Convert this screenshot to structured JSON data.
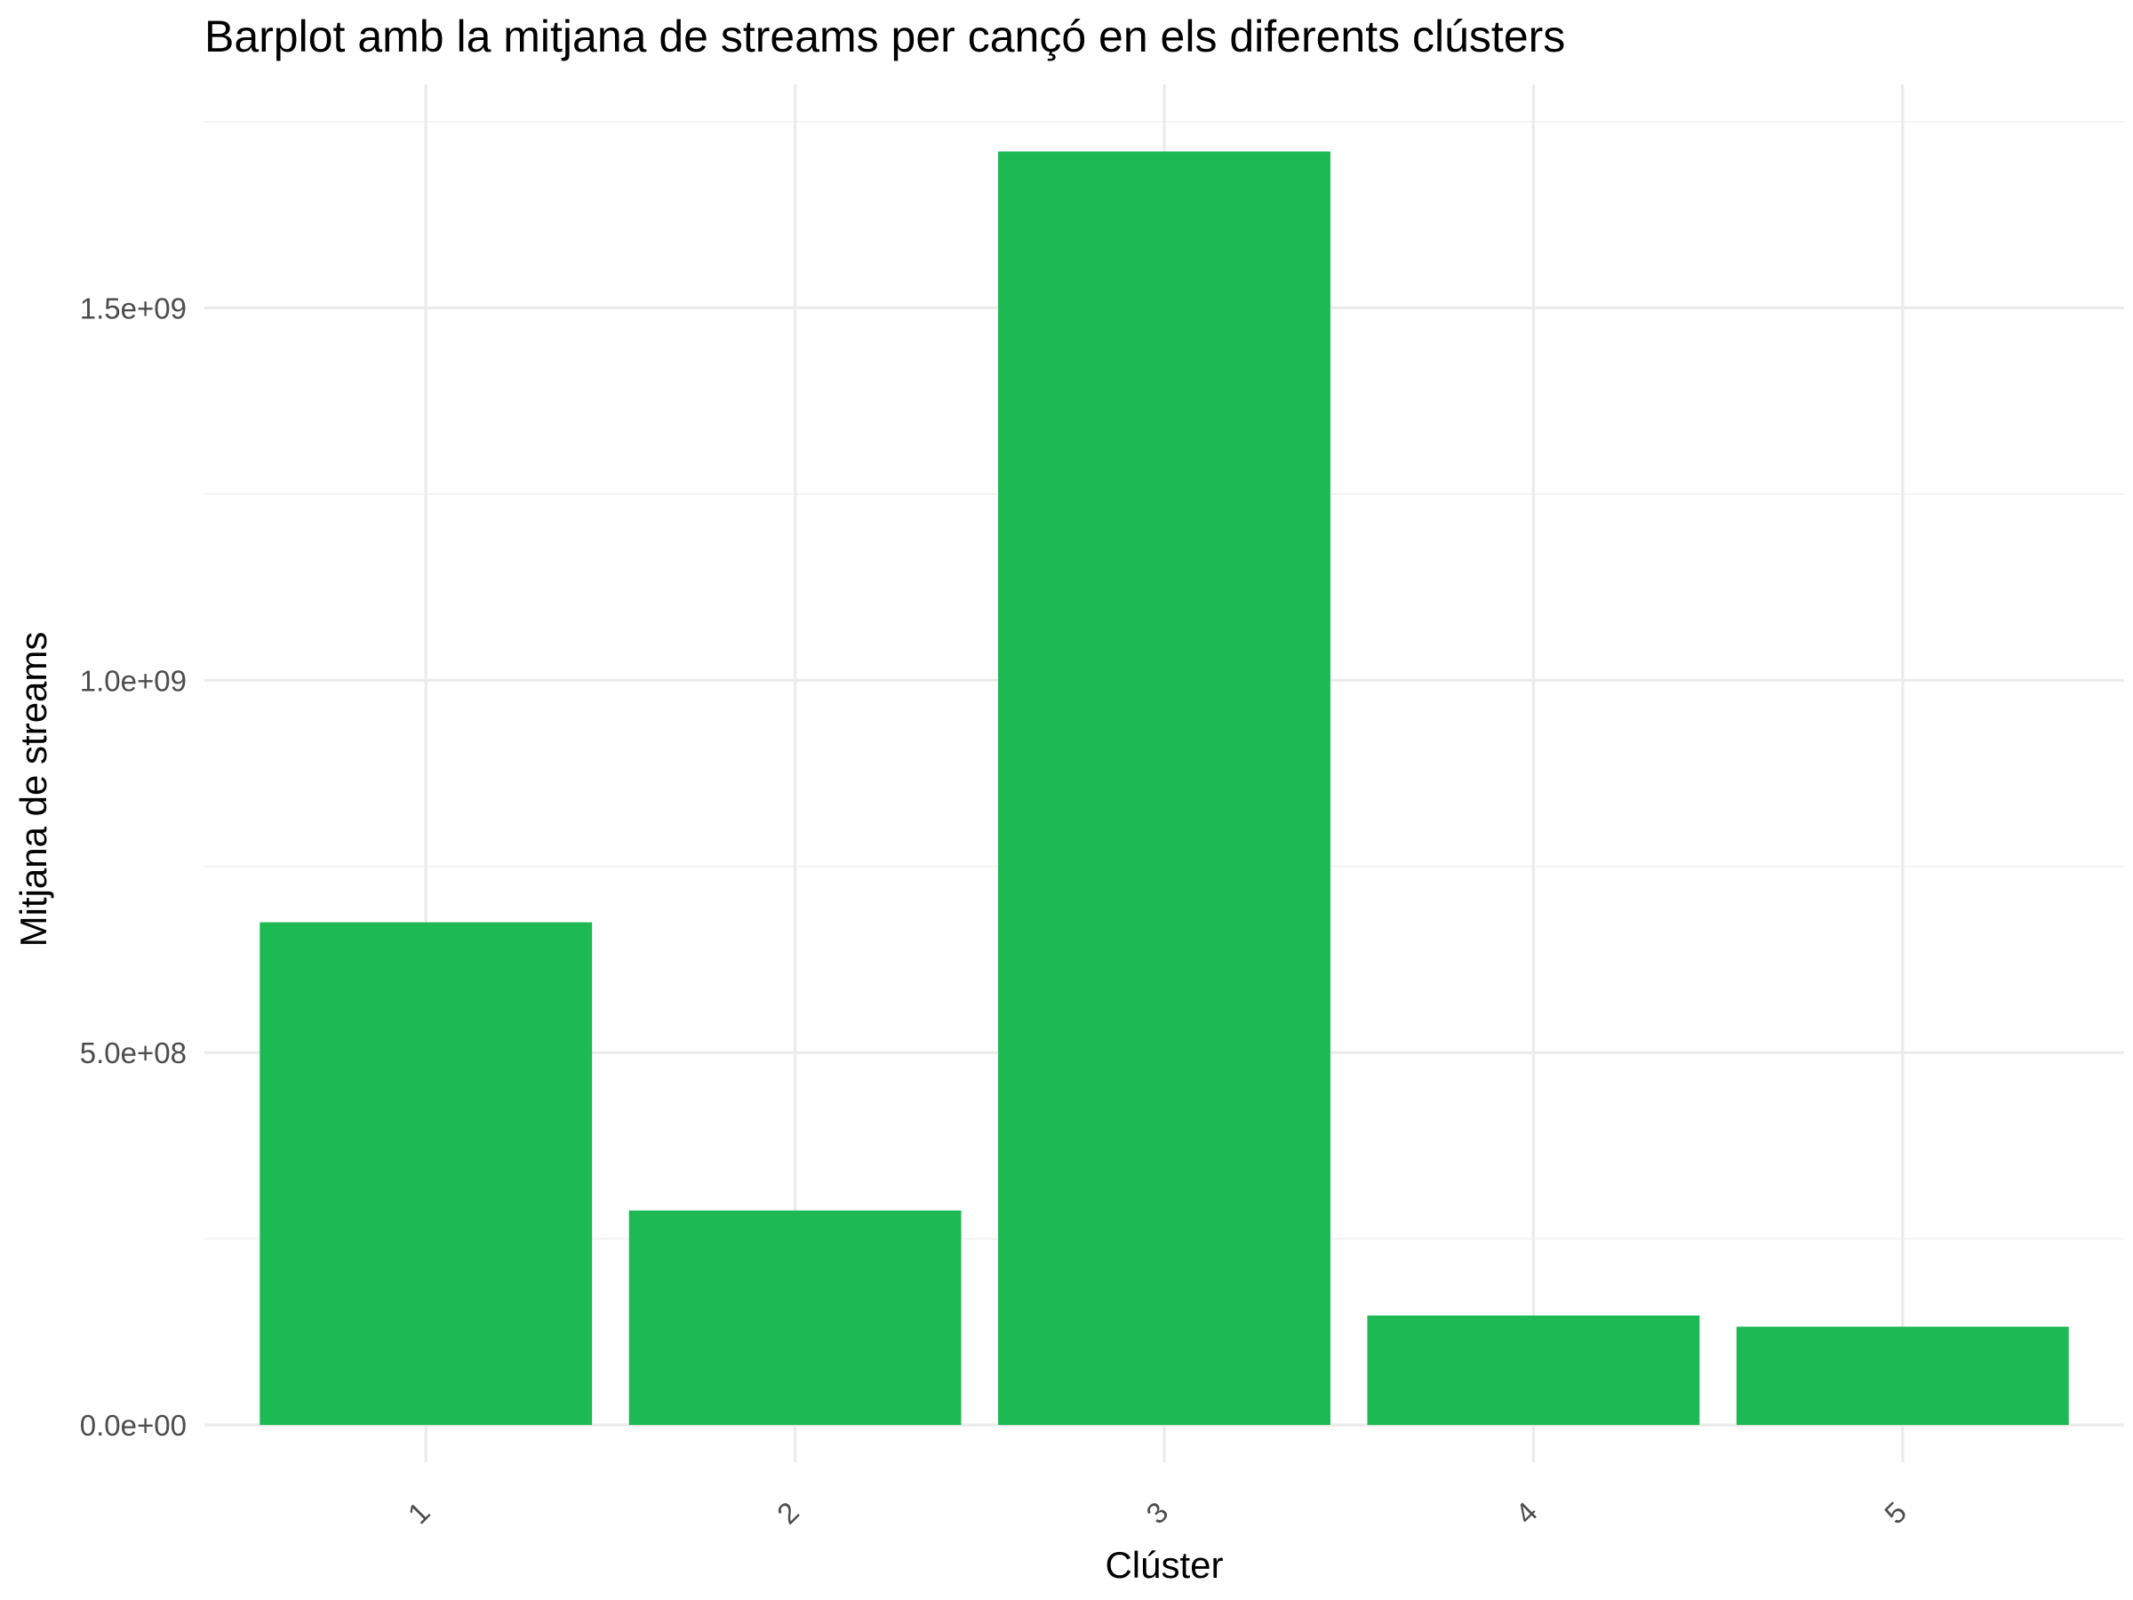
{
  "chart_data": {
    "type": "bar",
    "title": "Barplot amb la mitjana de streams per cançó en els diferents clústers",
    "xlabel": "Clúster",
    "ylabel": "Mitjana de streams",
    "categories": [
      "1",
      "2",
      "3",
      "4",
      "5"
    ],
    "values": [
      675000000,
      288000000,
      1710000000,
      147000000,
      132000000
    ],
    "ylim": [
      -50000000,
      1800000000
    ],
    "y_ticks": [
      0,
      500000000,
      1000000000,
      1500000000
    ],
    "y_tick_labels": [
      "0.0e+00",
      "5.0e+08",
      "1.0e+09",
      "1.5e+09"
    ],
    "x_tick_rotation": "45 degrees",
    "bar_color": "#1db954",
    "grid": true,
    "legend": "none"
  }
}
